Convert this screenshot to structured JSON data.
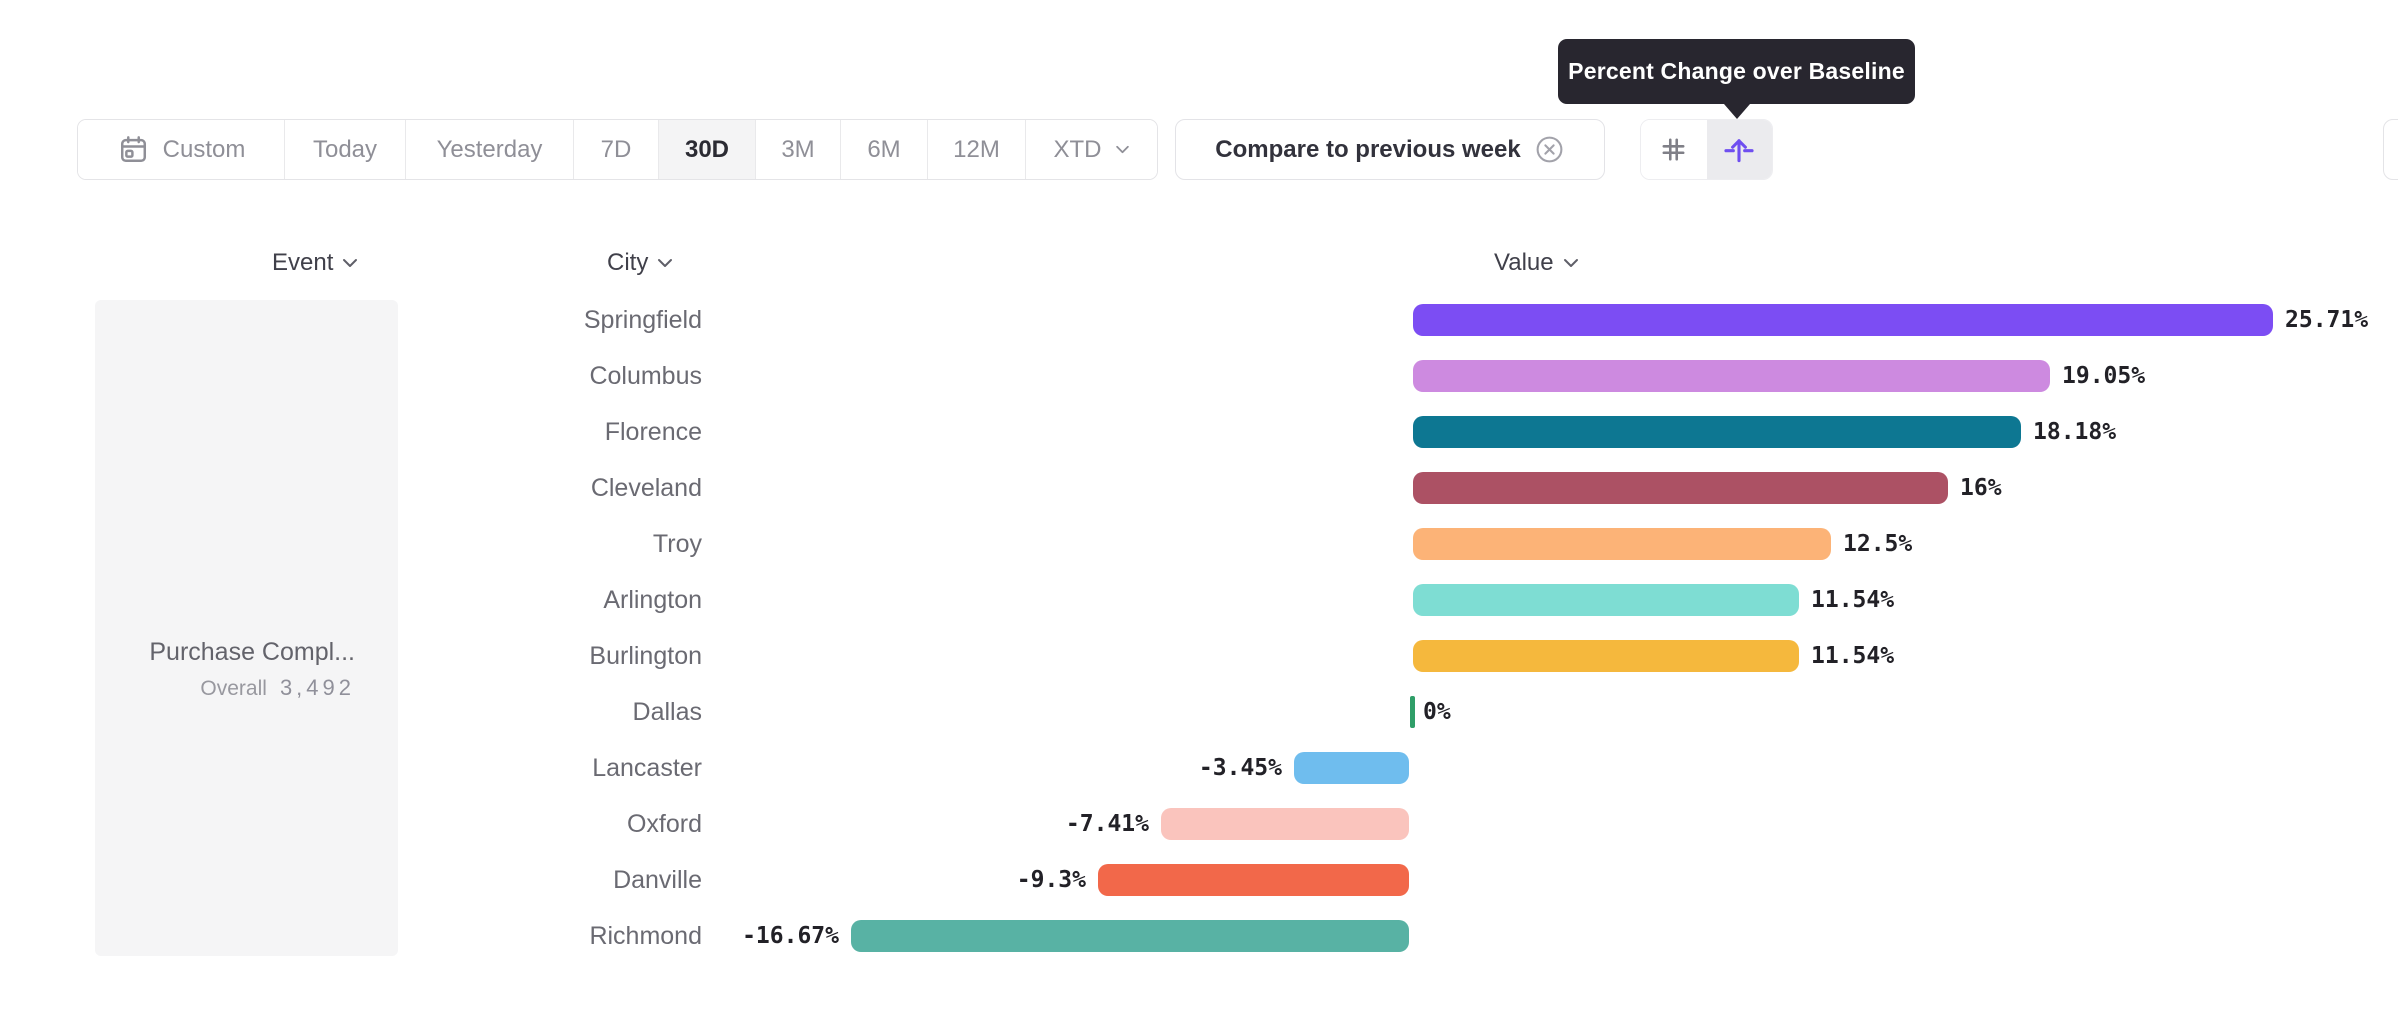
{
  "tooltip": {
    "text": "Percent Change over Baseline"
  },
  "toolbar": {
    "date_ranges": [
      {
        "label": "Custom",
        "icon": "calendar",
        "selected": false
      },
      {
        "label": "Today",
        "selected": false
      },
      {
        "label": "Yesterday",
        "selected": false
      },
      {
        "label": "7D",
        "selected": false
      },
      {
        "label": "30D",
        "selected": true
      },
      {
        "label": "3M",
        "selected": false
      },
      {
        "label": "6M",
        "selected": false
      },
      {
        "label": "12M",
        "selected": false
      },
      {
        "label": "XTD",
        "chevron": true,
        "selected": false
      }
    ],
    "compare_filter": {
      "label": "Compare to previous week"
    },
    "view_modes": [
      {
        "name": "numbers",
        "icon": "hash-icon",
        "selected": false
      },
      {
        "name": "percent-change-over-baseline",
        "icon": "percent-change-icon",
        "selected": true
      }
    ]
  },
  "columns": {
    "event": "Event",
    "city": "City",
    "value": "Value"
  },
  "event_panel": {
    "name": "Purchase Compl...",
    "segment": "Overall",
    "count": "3,492"
  },
  "chart_data": {
    "type": "bar",
    "orientation": "horizontal",
    "title": "Percent Change over Baseline",
    "unit": "%",
    "baseline": 0,
    "xlim": [
      -16.67,
      25.71
    ],
    "categories": [
      "Springfield",
      "Columbus",
      "Florence",
      "Cleveland",
      "Troy",
      "Arlington",
      "Burlington",
      "Dallas",
      "Lancaster",
      "Oxford",
      "Danville",
      "Richmond"
    ],
    "values": [
      25.71,
      19.05,
      18.18,
      16,
      12.5,
      11.54,
      11.54,
      0,
      -3.45,
      -7.41,
      -9.3,
      -16.67
    ],
    "labels": [
      "25.71%",
      "19.05%",
      "18.18%",
      "16%",
      "12.5%",
      "11.54%",
      "11.54%",
      "0%",
      "-3.45%",
      "-7.41%",
      "-9.3%",
      "-16.67%"
    ],
    "colors": [
      "#7C4DF3",
      "#CD8AE0",
      "#0D7792",
      "#AC5164",
      "#FCB377",
      "#7EDDD3",
      "#F5B83D",
      "#2F9E68",
      "#6FBDEE",
      "#FAC4BD",
      "#F2684A",
      "#58B2A4"
    ]
  },
  "accent_color": "#6F4FF0"
}
